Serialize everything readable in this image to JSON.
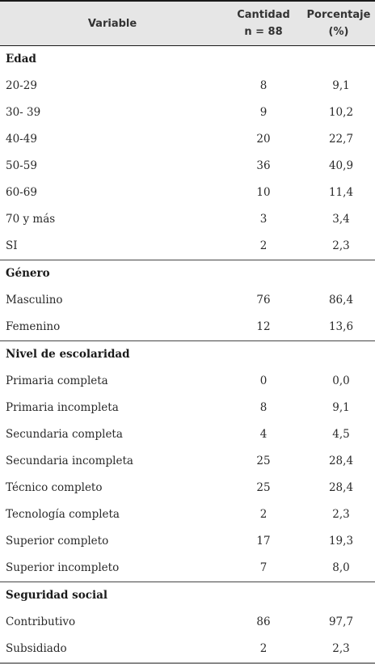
{
  "header": {
    "variable": "Variable",
    "cantidad_line1": "Cantidad",
    "cantidad_line2": "n = 88",
    "porcentaje_line1": "Porcentaje",
    "porcentaje_line2": "(%)"
  },
  "sections": [
    {
      "title": "Edad",
      "rows": [
        {
          "label": "20-29",
          "count": "8",
          "pct": "9,1"
        },
        {
          "label": "30- 39",
          "count": "9",
          "pct": "10,2"
        },
        {
          "label": "40-49",
          "count": "20",
          "pct": "22,7"
        },
        {
          "label": "50-59",
          "count": "36",
          "pct": "40,9"
        },
        {
          "label": "60-69",
          "count": "10",
          "pct": "11,4"
        },
        {
          "label": "70 y más",
          "count": "3",
          "pct": "3,4"
        },
        {
          "label": "SI",
          "count": "2",
          "pct": "2,3"
        }
      ]
    },
    {
      "title": "Género",
      "rows": [
        {
          "label": "Masculino",
          "count": "76",
          "pct": "86,4"
        },
        {
          "label": "Femenino",
          "count": "12",
          "pct": "13,6"
        }
      ]
    },
    {
      "title": "Nivel de escolaridad",
      "rows": [
        {
          "label": "Primaria completa",
          "count": "0",
          "pct": "0,0"
        },
        {
          "label": "Primaria incompleta",
          "count": "8",
          "pct": "9,1"
        },
        {
          "label": "Secundaria completa",
          "count": "4",
          "pct": "4,5"
        },
        {
          "label": "Secundaria incompleta",
          "count": "25",
          "pct": "28,4"
        },
        {
          "label": "Técnico completo",
          "count": "25",
          "pct": "28,4"
        },
        {
          "label": "Tecnología completa",
          "count": "2",
          "pct": "2,3"
        },
        {
          "label": "Superior completo",
          "count": "17",
          "pct": "19,3"
        },
        {
          "label": "Superior incompleto",
          "count": "7",
          "pct": "8,0"
        }
      ]
    },
    {
      "title": "Seguridad social",
      "rows": [
        {
          "label": "Contributivo",
          "count": "86",
          "pct": "97,7"
        },
        {
          "label": "Subsidiado",
          "count": "2",
          "pct": "2,3"
        }
      ]
    }
  ]
}
